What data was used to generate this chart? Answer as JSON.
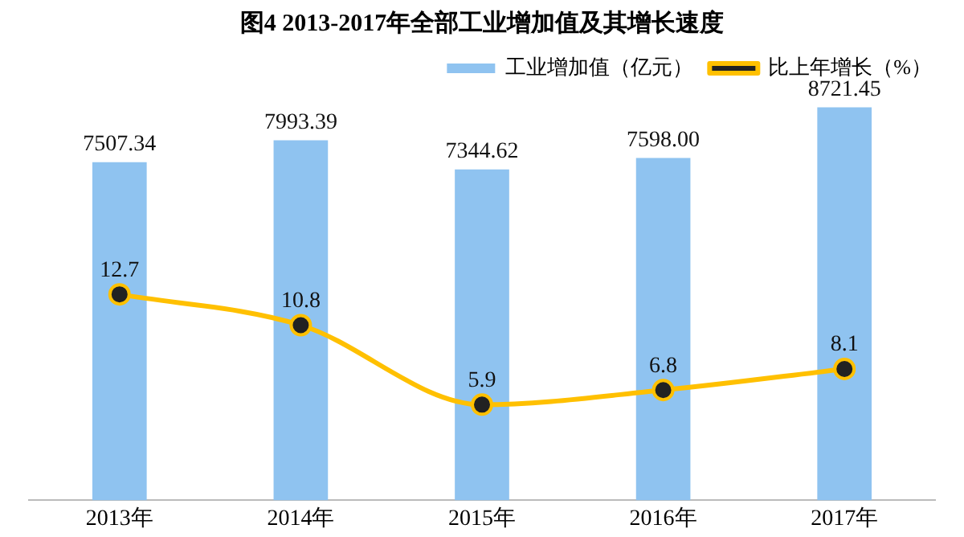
{
  "chart_data": {
    "type": "bar",
    "title": "图4 2013-2017年全部工业增加值及其增长速度",
    "categories": [
      "2013年",
      "2014年",
      "2015年",
      "2016年",
      "2017年"
    ],
    "series": [
      {
        "name": "工业增加值（亿元）",
        "color": "#8fc3f0",
        "values": [
          7507.34,
          7993.39,
          7344.62,
          7598.0,
          8721.45
        ],
        "value_labels": [
          "7507.34",
          "7993.39",
          "7344.62",
          "7598.00",
          "8721.45"
        ]
      },
      {
        "name": "比上年增长（%）",
        "type": "line",
        "axis": "y2",
        "color": "#ffc000",
        "values": [
          12.7,
          10.8,
          5.9,
          6.8,
          8.1
        ],
        "value_labels": [
          "12.7",
          "10.8",
          "5.9",
          "6.8",
          "8.1"
        ]
      }
    ],
    "tick_labels": "x",
    "data_labels": true,
    "legend": "top right",
    "marker": "circle"
  }
}
